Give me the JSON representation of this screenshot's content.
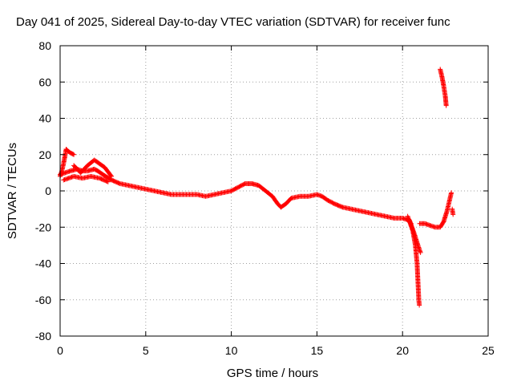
{
  "chart_data": {
    "type": "scatter",
    "title": "Day 041 of 2025, Sidereal Day-to-day VTEC variation (SDTVAR) for receiver func",
    "xlabel": "GPS time / hours",
    "ylabel": "SDTVAR / TECUs",
    "xlim": [
      0,
      25
    ],
    "ylim": [
      -80,
      80
    ],
    "xticks": [
      0,
      5,
      10,
      15,
      20,
      25
    ],
    "yticks": [
      -80,
      -60,
      -40,
      -20,
      0,
      20,
      40,
      60,
      80
    ],
    "grid": true,
    "marker": "+",
    "series": [
      {
        "name": "SDTVAR",
        "color": "#ff0000",
        "segments": [
          [
            [
              0.0,
              8
            ],
            [
              0.1,
              11
            ],
            [
              0.2,
              15
            ],
            [
              0.3,
              20
            ],
            [
              0.35,
              23
            ],
            [
              0.45,
              22
            ],
            [
              0.6,
              21
            ],
            [
              0.8,
              20
            ]
          ],
          [
            [
              0.0,
              9
            ],
            [
              0.3,
              10
            ],
            [
              0.6,
              11
            ],
            [
              1.0,
              12
            ],
            [
              1.3,
              11
            ],
            [
              1.6,
              11
            ],
            [
              2.0,
              12
            ],
            [
              2.2,
              11
            ],
            [
              2.5,
              9
            ],
            [
              3.0,
              6
            ],
            [
              3.5,
              4
            ],
            [
              4.0,
              3
            ],
            [
              4.5,
              2
            ],
            [
              5.0,
              1
            ],
            [
              5.5,
              0
            ],
            [
              6.0,
              -1
            ],
            [
              6.5,
              -2
            ],
            [
              7.0,
              -2
            ],
            [
              7.5,
              -2
            ],
            [
              8.0,
              -2
            ],
            [
              8.5,
              -3
            ],
            [
              9.0,
              -2
            ],
            [
              9.5,
              -1
            ],
            [
              10.0,
              0
            ],
            [
              10.4,
              2
            ],
            [
              10.8,
              4
            ],
            [
              11.2,
              4
            ],
            [
              11.6,
              3
            ],
            [
              12.0,
              0
            ],
            [
              12.4,
              -3
            ],
            [
              12.7,
              -7
            ],
            [
              12.9,
              -9
            ],
            [
              13.2,
              -7
            ],
            [
              13.5,
              -4
            ],
            [
              14.0,
              -3
            ],
            [
              14.5,
              -3
            ],
            [
              15.0,
              -2
            ],
            [
              15.3,
              -3
            ],
            [
              15.6,
              -5
            ],
            [
              16.0,
              -7
            ],
            [
              16.5,
              -9
            ],
            [
              17.0,
              -10
            ],
            [
              17.5,
              -11
            ],
            [
              18.0,
              -12
            ],
            [
              18.5,
              -13
            ],
            [
              19.0,
              -14
            ],
            [
              19.5,
              -15
            ],
            [
              20.0,
              -15
            ],
            [
              20.3,
              -16
            ],
            [
              20.5,
              -18
            ]
          ],
          [
            [
              0.2,
              6
            ],
            [
              0.8,
              8
            ],
            [
              1.3,
              7
            ],
            [
              1.8,
              8
            ],
            [
              2.3,
              7
            ],
            [
              2.8,
              5
            ]
          ],
          [
            [
              0.8,
              14
            ],
            [
              1.2,
              10
            ],
            [
              1.6,
              14
            ],
            [
              2.0,
              17
            ],
            [
              2.3,
              15
            ],
            [
              2.6,
              13
            ],
            [
              3.0,
              8
            ]
          ],
          [
            [
              20.3,
              -14
            ],
            [
              20.6,
              -22
            ],
            [
              20.75,
              -30
            ],
            [
              20.85,
              -40
            ],
            [
              20.9,
              -50
            ],
            [
              20.95,
              -60
            ],
            [
              20.98,
              -63
            ]
          ],
          [
            [
              20.4,
              -16
            ],
            [
              20.7,
              -24
            ],
            [
              20.9,
              -30
            ],
            [
              21.05,
              -34
            ]
          ],
          [
            [
              21.0,
              -18
            ],
            [
              21.3,
              -18
            ],
            [
              21.6,
              -19
            ],
            [
              21.9,
              -20
            ],
            [
              22.2,
              -20
            ],
            [
              22.4,
              -17
            ],
            [
              22.6,
              -11
            ],
            [
              22.75,
              -5
            ],
            [
              22.85,
              -1
            ]
          ],
          [
            [
              22.9,
              -10
            ],
            [
              22.95,
              -13
            ]
          ],
          [
            [
              22.2,
              67
            ],
            [
              22.3,
              63
            ],
            [
              22.4,
              58
            ],
            [
              22.5,
              52
            ],
            [
              22.55,
              47
            ]
          ]
        ]
      }
    ]
  }
}
